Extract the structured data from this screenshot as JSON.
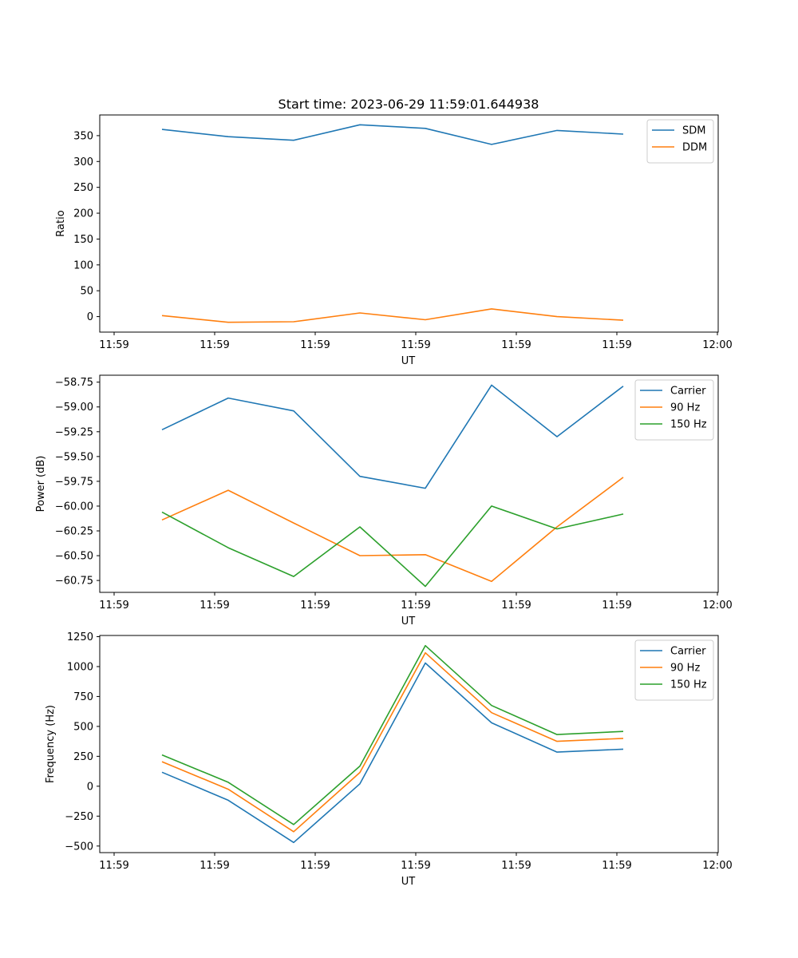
{
  "figure": {
    "title": "Start time: 2023-06-29 11:59:01.644938"
  },
  "chart_data": [
    {
      "type": "line",
      "title": "Start time: 2023-06-29 11:59:01.644938",
      "xlabel": "UT",
      "ylabel": "Ratio",
      "x_tick_labels": [
        "11:59",
        "11:59",
        "11:59",
        "11:59",
        "11:59",
        "11:59",
        "11:59",
        "12:00"
      ],
      "x_points": 8,
      "ylim": [
        -30,
        390
      ],
      "y_ticks": [
        0,
        50,
        100,
        150,
        200,
        250,
        300,
        350
      ],
      "legend_position": "upper-right",
      "series": [
        {
          "name": "SDM",
          "color": "#1f77b4",
          "values": [
            362,
            348,
            341,
            371,
            364,
            333,
            360,
            353
          ]
        },
        {
          "name": "DDM",
          "color": "#ff7f0e",
          "values": [
            2,
            -11,
            -10,
            7,
            -6,
            15,
            0,
            -7
          ]
        }
      ]
    },
    {
      "type": "line",
      "title": "",
      "xlabel": "UT",
      "ylabel": "Power (dB)",
      "x_tick_labels": [
        "11:59",
        "11:59",
        "11:59",
        "11:59",
        "11:59",
        "11:59",
        "11:59",
        "12:00"
      ],
      "x_points": 8,
      "ylim": [
        -60.87,
        -58.68
      ],
      "y_ticks": [
        -60.75,
        -60.5,
        -60.25,
        -60.0,
        -59.75,
        -59.5,
        -59.25,
        -59.0,
        -58.75
      ],
      "y_tick_labels": [
        "−60.75",
        "−60.50",
        "−60.25",
        "−60.00",
        "−59.75",
        "−59.50",
        "−59.25",
        "−59.00",
        "−58.75"
      ],
      "legend_position": "upper-right",
      "series": [
        {
          "name": "Carrier",
          "color": "#1f77b4",
          "values": [
            -59.23,
            -58.91,
            -59.04,
            -59.7,
            -59.82,
            -58.78,
            -59.3,
            -58.79
          ]
        },
        {
          "name": "90 Hz",
          "color": "#ff7f0e",
          "values": [
            -60.14,
            -59.84,
            -60.17,
            -60.5,
            -60.49,
            -60.76,
            -60.21,
            -59.71
          ]
        },
        {
          "name": "150 Hz",
          "color": "#2ca02c",
          "values": [
            -60.06,
            -60.42,
            -60.71,
            -60.21,
            -60.81,
            -60.0,
            -60.23,
            -60.08
          ]
        }
      ]
    },
    {
      "type": "line",
      "title": "",
      "xlabel": "UT",
      "ylabel": "Frequency (Hz)",
      "x_tick_labels": [
        "11:59",
        "11:59",
        "11:59",
        "11:59",
        "11:59",
        "11:59",
        "11:59",
        "12:00"
      ],
      "x_points": 8,
      "ylim": [
        -555,
        1260
      ],
      "y_ticks": [
        -500,
        -250,
        0,
        250,
        500,
        750,
        1000,
        1250
      ],
      "y_tick_labels": [
        "−500",
        "−250",
        "0",
        "250",
        "500",
        "750",
        "1000",
        "1250"
      ],
      "legend_position": "upper-right",
      "series": [
        {
          "name": "Carrier",
          "color": "#1f77b4",
          "values": [
            117,
            -117,
            -470,
            20,
            1030,
            530,
            285,
            310
          ]
        },
        {
          "name": "90 Hz",
          "color": "#ff7f0e",
          "values": [
            205,
            -25,
            -380,
            115,
            1115,
            615,
            375,
            400
          ]
        },
        {
          "name": "150 Hz",
          "color": "#2ca02c",
          "values": [
            262,
            33,
            -320,
            168,
            1175,
            675,
            432,
            458
          ]
        }
      ]
    }
  ]
}
